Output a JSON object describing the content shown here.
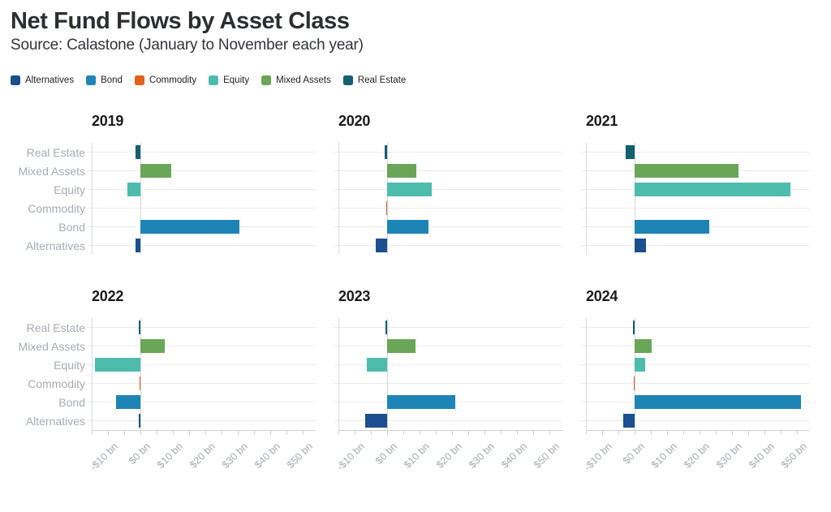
{
  "header": {
    "title": "Net Fund Flows by Asset Class",
    "subtitle": "Source: Calastone (January to November each year)"
  },
  "legend": [
    {
      "label": "Alternatives",
      "color": "#1b4f8d"
    },
    {
      "label": "Bond",
      "color": "#1e84b5"
    },
    {
      "label": "Commodity",
      "color": "#e2611b"
    },
    {
      "label": "Equity",
      "color": "#4dbcad"
    },
    {
      "label": "Mixed Assets",
      "color": "#6aa657"
    },
    {
      "label": "Real Estate",
      "color": "#136070"
    }
  ],
  "chart_data": {
    "type": "bar",
    "orientation": "horizontal",
    "title": "Net Fund Flows by Asset Class",
    "subtitle": "Source: Calastone (January to November each year)",
    "unit": "USD billions (net fund flows)",
    "layout": "2 rows x 3 columns of small multiples, one per year",
    "grid": "horizontal row gridlines only",
    "legend_position": "top-left",
    "categories_top_to_bottom": [
      "Real Estate",
      "Mixed Assets",
      "Equity",
      "Commodity",
      "Bond",
      "Alternatives"
    ],
    "series_colors": {
      "Real Estate": "#136070",
      "Mixed Assets": "#6aa657",
      "Equity": "#4dbcad",
      "Commodity": "#e2611b",
      "Bond": "#1e84b5",
      "Alternatives": "#1b4f8d"
    },
    "xlim": [
      -15,
      54
    ],
    "x_tick_values": [
      -10,
      0,
      10,
      20,
      30,
      40,
      50
    ],
    "x_tick_labels": [
      "-$10 bn",
      "$0 bn",
      "$10 bn",
      "$20 bn",
      "$30 bn",
      "$40 bn",
      "$50 bn"
    ],
    "minor_tick_step": 5,
    "panels": [
      {
        "year": "2019",
        "values": {
          "Real Estate": -1.5,
          "Mixed Assets": 9.5,
          "Equity": -4,
          "Commodity": 0,
          "Bond": 30.5,
          "Alternatives": -1.5
        }
      },
      {
        "year": "2020",
        "values": {
          "Real Estate": -0.8,
          "Mixed Assets": 9,
          "Equity": 13.7,
          "Commodity": -0.3,
          "Bond": 12.7,
          "Alternatives": -3.4
        }
      },
      {
        "year": "2021",
        "values": {
          "Real Estate": -2.8,
          "Mixed Assets": 32,
          "Equity": 48,
          "Commodity": 0,
          "Bond": 23,
          "Alternatives": 3.6
        }
      },
      {
        "year": "2022",
        "values": {
          "Real Estate": -0.5,
          "Mixed Assets": 7.5,
          "Equity": -14,
          "Commodity": -0.3,
          "Bond": -7.5,
          "Alternatives": -0.5
        }
      },
      {
        "year": "2023",
        "values": {
          "Real Estate": -0.5,
          "Mixed Assets": 8.8,
          "Equity": -6.3,
          "Commodity": 0,
          "Bond": 21,
          "Alternatives": -6.7
        }
      },
      {
        "year": "2024",
        "values": {
          "Real Estate": -0.5,
          "Mixed Assets": 5.3,
          "Equity": 3.2,
          "Commodity": -0.2,
          "Bond": 51.2,
          "Alternatives": -3.5
        }
      }
    ]
  }
}
